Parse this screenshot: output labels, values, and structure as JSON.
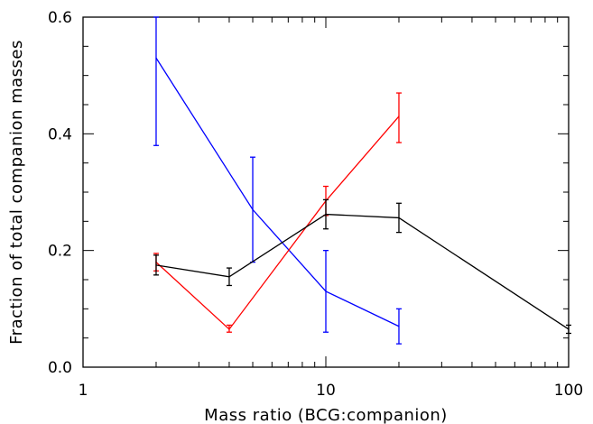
{
  "chart_data": {
    "type": "line",
    "xlabel": "Mass ratio (BCG:companion)",
    "ylabel": "Fraction of total companion masses",
    "xscale": "log",
    "xlim": [
      1,
      100
    ],
    "ylim": [
      0,
      0.6
    ],
    "x_ticks": [
      {
        "value": 1,
        "label": "1"
      },
      {
        "value": 10,
        "label": "10"
      },
      {
        "value": 100,
        "label": "100"
      }
    ],
    "y_ticks": [
      {
        "value": 0.0,
        "label": "0.0"
      },
      {
        "value": 0.2,
        "label": "0.2"
      },
      {
        "value": 0.4,
        "label": "0.4"
      },
      {
        "value": 0.6,
        "label": "0.6"
      }
    ],
    "grid": false,
    "series": [
      {
        "color": "#0000ff",
        "points": [
          {
            "x": 2,
            "y": 0.53,
            "err_low": 0.38,
            "err_high": 0.6
          },
          {
            "x": 5,
            "y": 0.27,
            "err_low": 0.18,
            "err_high": 0.36
          },
          {
            "x": 10,
            "y": 0.13,
            "err_low": 0.06,
            "err_high": 0.2
          },
          {
            "x": 20,
            "y": 0.07,
            "err_low": 0.04,
            "err_high": 0.1
          }
        ]
      },
      {
        "color": "#ff0000",
        "points": [
          {
            "x": 2,
            "y": 0.18,
            "err_low": 0.165,
            "err_high": 0.195
          },
          {
            "x": 4,
            "y": 0.065,
            "err_low": 0.06,
            "err_high": 0.072
          },
          {
            "x": 10,
            "y": 0.285,
            "err_low": 0.26,
            "err_high": 0.31
          },
          {
            "x": 20,
            "y": 0.43,
            "err_low": 0.385,
            "err_high": 0.47
          }
        ]
      },
      {
        "color": "#000000",
        "points": [
          {
            "x": 2,
            "y": 0.175,
            "err_low": 0.158,
            "err_high": 0.192
          },
          {
            "x": 4,
            "y": 0.155,
            "err_low": 0.14,
            "err_high": 0.17
          },
          {
            "x": 10,
            "y": 0.262,
            "err_low": 0.237,
            "err_high": 0.287
          },
          {
            "x": 20,
            "y": 0.256,
            "err_low": 0.231,
            "err_high": 0.281
          },
          {
            "x": 100,
            "y": 0.065,
            "err_low": 0.058,
            "err_high": 0.072
          }
        ]
      }
    ]
  }
}
